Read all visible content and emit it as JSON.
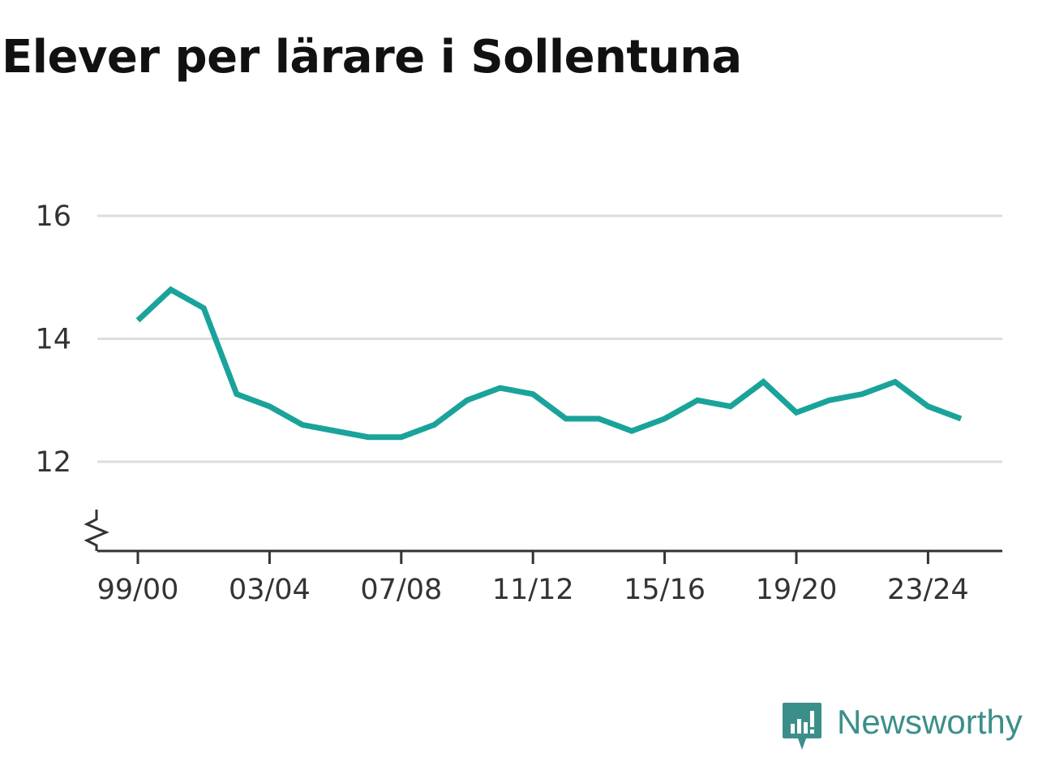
{
  "chart_data": {
    "type": "line",
    "title": "Elever per lärare i Sollentuna",
    "xlabel": "",
    "ylabel": "",
    "x": [
      "99/00",
      "00/01",
      "01/02",
      "02/03",
      "03/04",
      "04/05",
      "05/06",
      "06/07",
      "07/08",
      "08/09",
      "09/10",
      "10/11",
      "11/12",
      "12/13",
      "13/14",
      "14/15",
      "15/16",
      "16/17",
      "17/18",
      "18/19",
      "19/20",
      "20/21",
      "21/22",
      "22/23",
      "23/24",
      "24/25"
    ],
    "x_tick_labels": [
      "99/00",
      "03/04",
      "07/08",
      "11/12",
      "15/16",
      "19/20",
      "23/24"
    ],
    "series": [
      {
        "values": [
          14.3,
          14.8,
          14.5,
          13.1,
          12.9,
          12.6,
          12.5,
          12.4,
          12.4,
          12.6,
          13.0,
          13.2,
          13.1,
          12.7,
          12.7,
          12.5,
          12.7,
          13.0,
          12.9,
          13.3,
          12.8,
          13.0,
          13.1,
          13.3,
          12.9,
          12.7
        ],
        "color": "#1aa39a"
      }
    ],
    "y_ticks": [
      12,
      14,
      16
    ],
    "y_tick_labels": [
      "12",
      "14",
      "16"
    ],
    "ylim": [
      10.5,
      16
    ],
    "y_axis_break": true,
    "grid": true
  },
  "brand": {
    "name": "Newsworthy",
    "logo_icon": "bar-chart-speech-bubble-icon",
    "color": "#3b8f8a"
  }
}
